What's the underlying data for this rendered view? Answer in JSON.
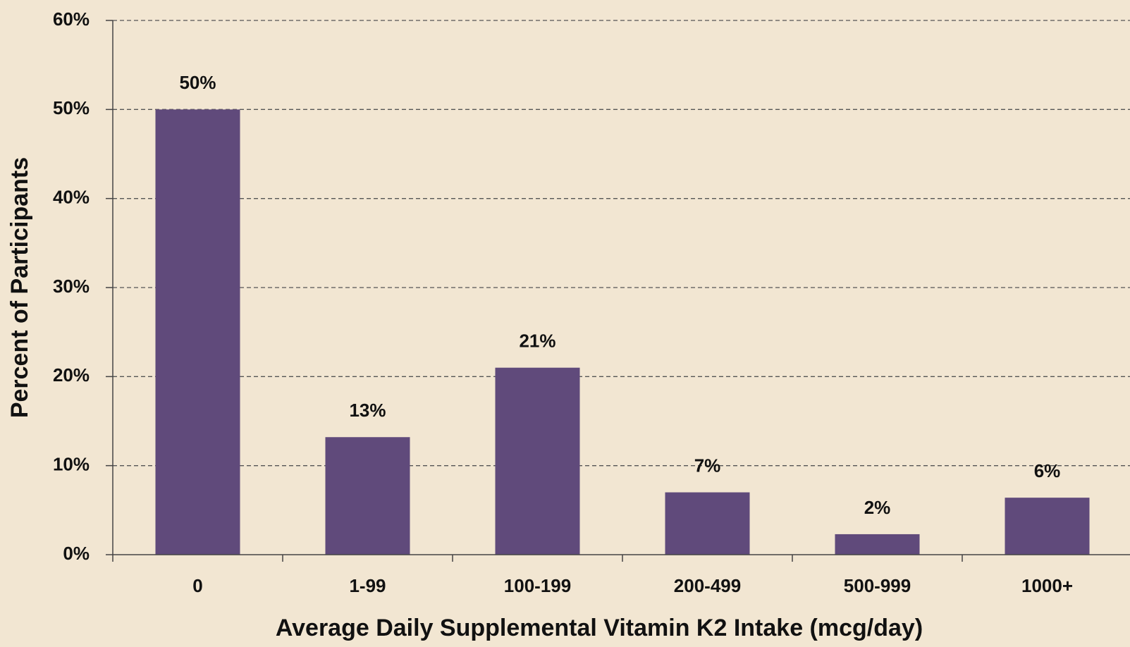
{
  "chart_data": {
    "type": "bar",
    "xlabel": "Average Daily Supplemental Vitamin K2 Intake (mcg/day)",
    "ylabel": "Percent of Participants",
    "categories": [
      "0",
      "1-99",
      "100-199",
      "200-499",
      "500-999",
      "1000+"
    ],
    "values": [
      50,
      13.2,
      21,
      7,
      2.3,
      6.4
    ],
    "value_labels": [
      "50%",
      "13%",
      "21%",
      "7%",
      "2%",
      "6%"
    ],
    "color": "#604a7b",
    "ylim": [
      0,
      60
    ],
    "yticks": [
      {
        "value": 0,
        "label": "0%"
      },
      {
        "value": 10,
        "label": "10%"
      },
      {
        "value": 20,
        "label": "20%"
      },
      {
        "value": 30,
        "label": "30%"
      },
      {
        "value": 40,
        "label": "40%"
      },
      {
        "value": 50,
        "label": "50%"
      },
      {
        "value": 60,
        "label": "60%"
      }
    ],
    "grid": true
  }
}
